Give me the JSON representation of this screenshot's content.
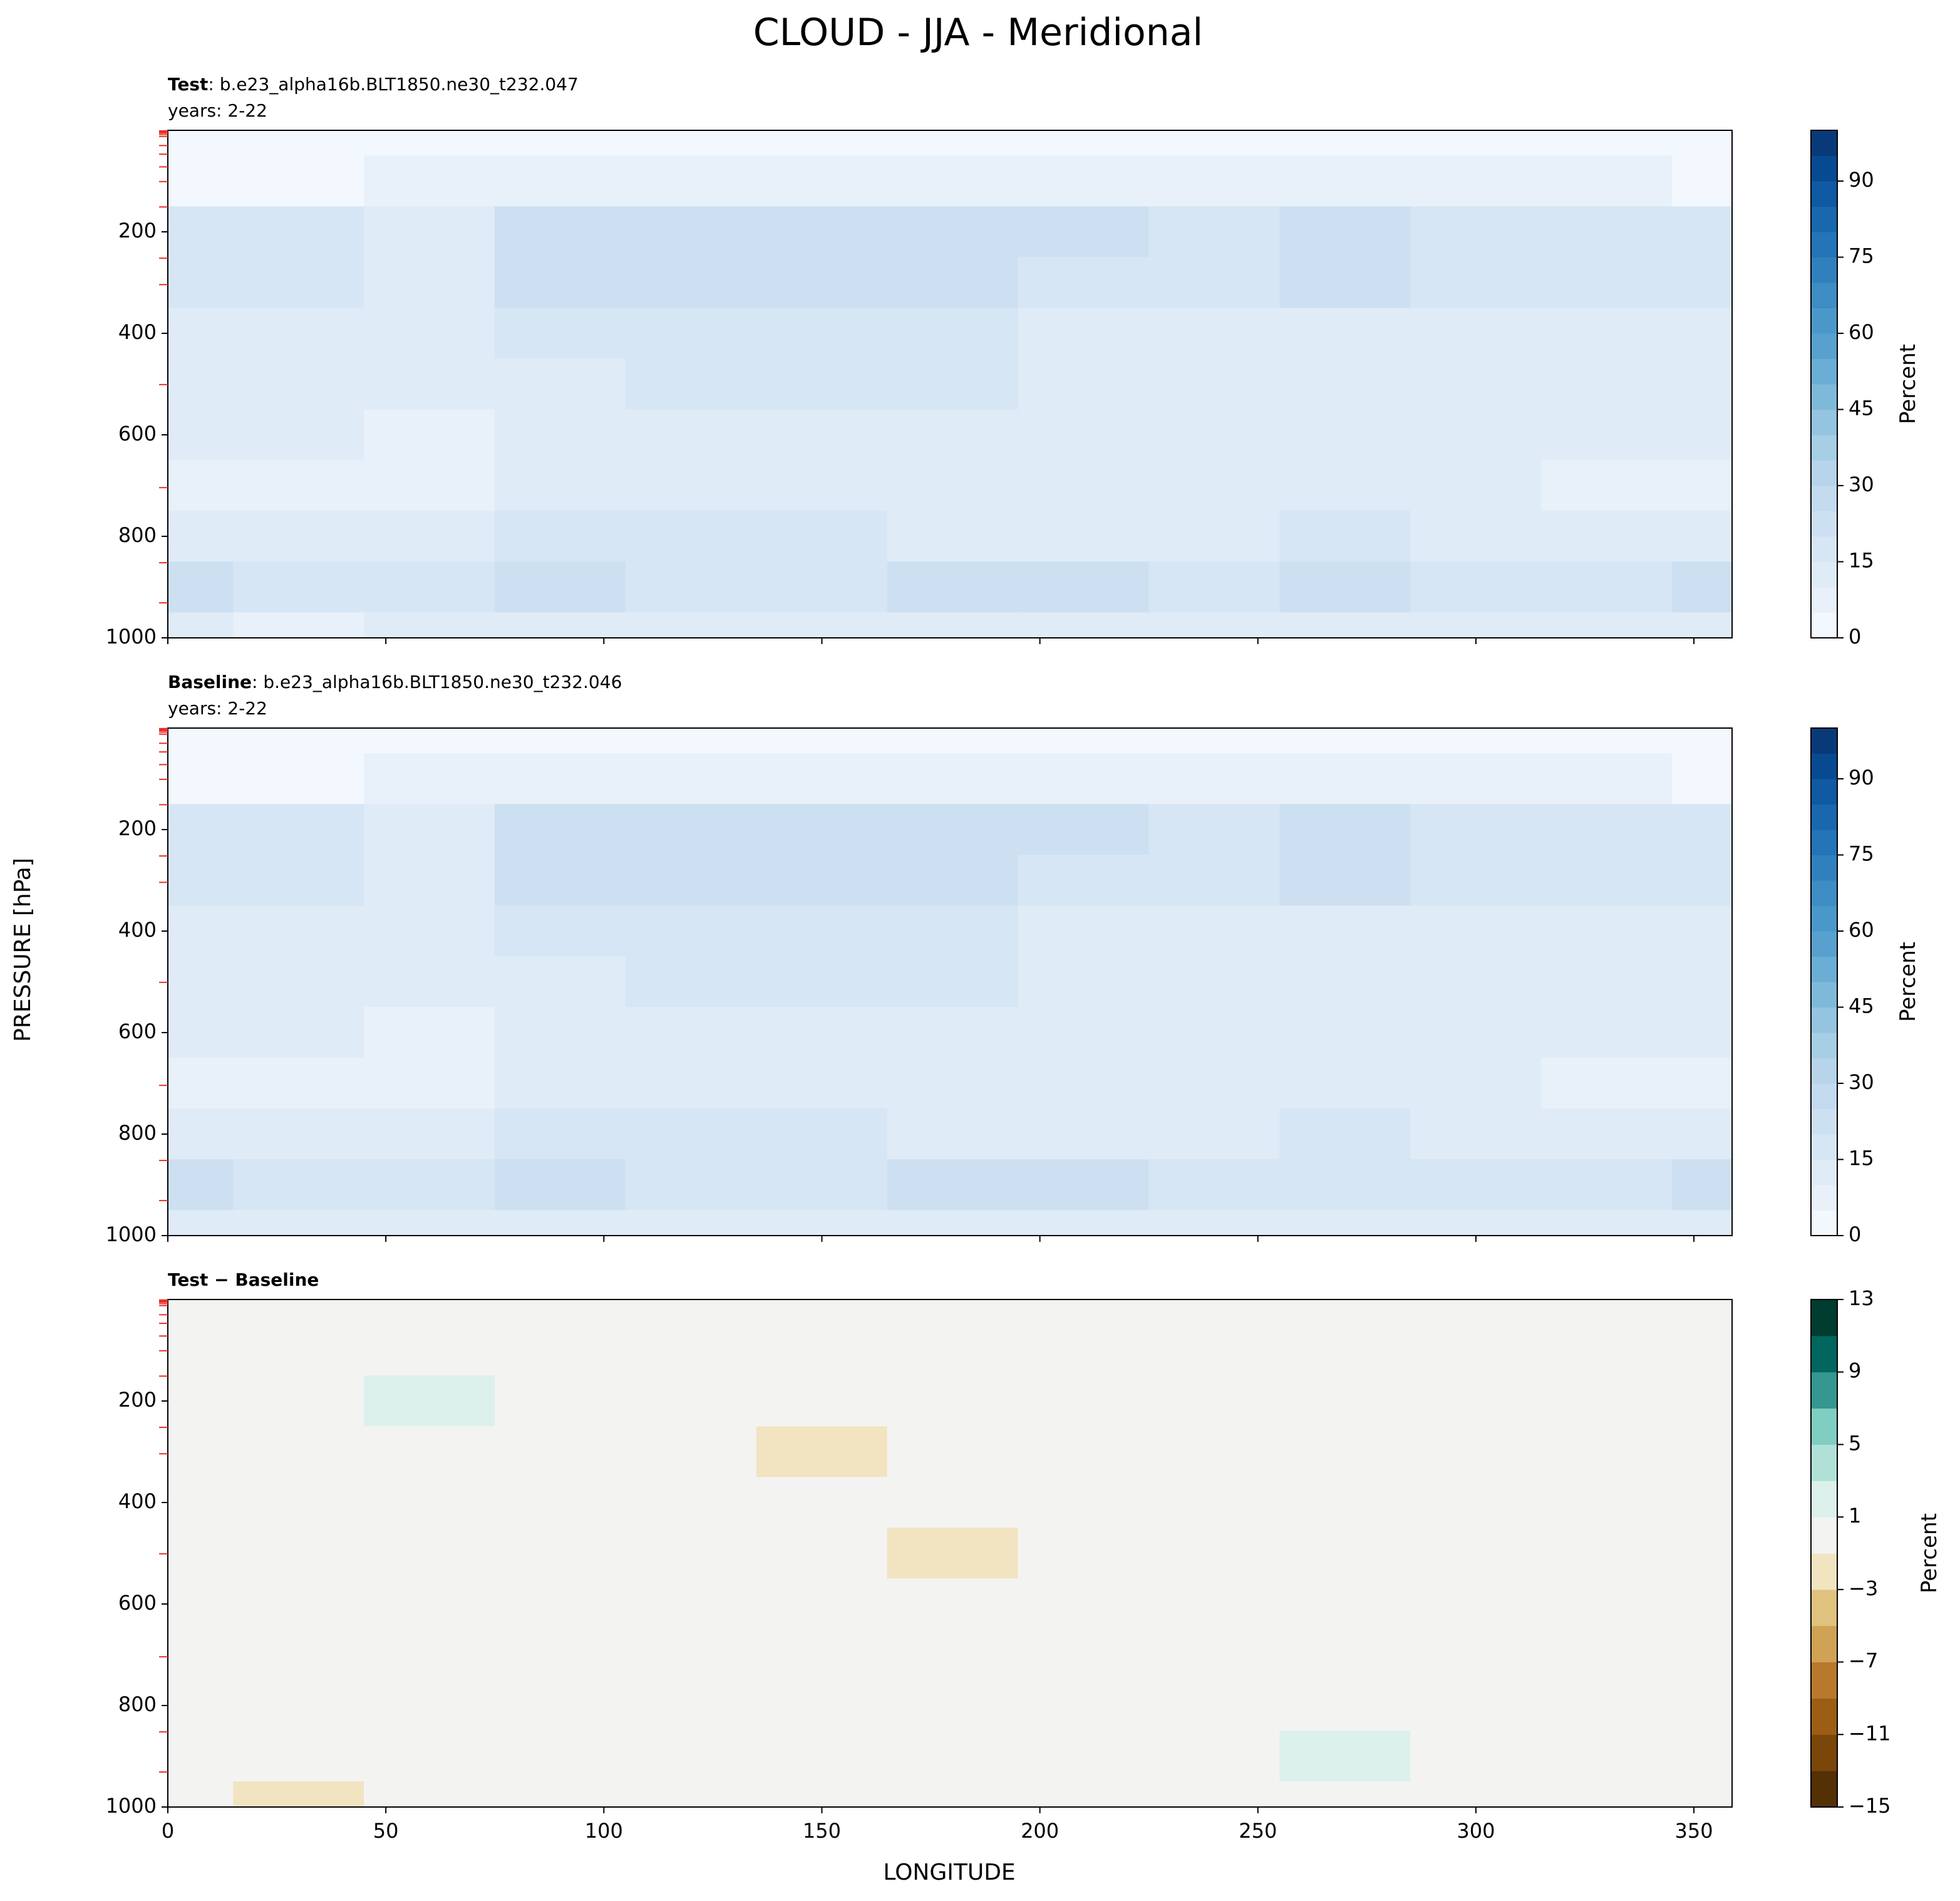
{
  "figure": {
    "title": "CLOUD - JJA - Meridional",
    "xlabel": "LONGITUDE",
    "ylabel": "PRESSURE [hPa]",
    "model_levels": {
      "color": "#e8302a",
      "values": [
        1,
        3,
        5,
        8,
        12,
        30,
        47,
        72,
        101,
        151,
        252,
        304,
        501,
        704,
        852,
        931
      ]
    }
  },
  "chart_data": [
    {
      "type": "contour",
      "title_bold": "Test",
      "title": ": b.e23_alpha16b.BLT1850.ne30_t232.047",
      "subtitle": "years: 2-22",
      "xlim": [
        0,
        358.75
      ],
      "xticks": [
        0,
        50,
        100,
        150,
        200,
        250,
        300,
        350
      ],
      "show_xtick_labels": false,
      "ylim": [
        1000,
        0
      ],
      "yticks": [
        200,
        400,
        600,
        800,
        1000
      ],
      "colorbar_label": "Percent",
      "levels": [
        0,
        5,
        10,
        15,
        20,
        25,
        30,
        35,
        40,
        45,
        50,
        55,
        60,
        65,
        70,
        75,
        80,
        85,
        90,
        95,
        100
      ],
      "colors": [
        "#f3f8fe",
        "#e8f1fa",
        "#dfebf7",
        "#d6e6f4",
        "#cde0f1",
        "#c4daee",
        "#b7d4ea",
        "#a6cee4",
        "#94c4df",
        "#7fb9da",
        "#6aaed6",
        "#58a1cf",
        "#4a98c9",
        "#3d8dc4",
        "#3080bd",
        "#2474b7",
        "#1967ad",
        "#0f5aa3",
        "#084a91",
        "#083a7a"
      ],
      "cbar_ticks": [
        0,
        15,
        30,
        45,
        60,
        75,
        90
      ],
      "x": [
        0,
        30,
        60,
        90,
        120,
        150,
        180,
        210,
        240,
        270,
        300,
        330,
        360
      ],
      "y": [
        0,
        100,
        200,
        300,
        400,
        500,
        600,
        700,
        800,
        900,
        1000
      ],
      "z": [
        [
          2,
          2,
          2,
          2,
          2,
          2,
          2,
          2,
          2,
          2,
          2,
          2,
          2
        ],
        [
          4,
          4,
          7,
          9,
          9,
          9,
          9,
          9,
          8,
          7,
          7,
          5,
          4
        ],
        [
          17,
          17,
          13,
          22,
          24,
          24,
          24,
          22,
          15,
          22,
          17,
          15,
          17
        ],
        [
          18,
          17,
          12,
          20,
          22,
          22,
          21,
          16,
          15,
          20,
          15,
          15,
          18
        ],
        [
          12,
          11,
          12,
          16,
          18,
          18,
          17,
          13,
          12,
          13,
          11,
          11,
          12
        ],
        [
          11,
          11,
          11,
          14,
          17,
          17,
          16,
          12,
          12,
          13,
          11,
          11,
          11
        ],
        [
          10,
          10,
          8,
          12,
          13,
          13,
          13,
          11,
          11,
          12,
          11,
          10,
          10
        ],
        [
          7,
          8,
          6,
          10,
          11,
          11,
          11,
          11,
          11,
          12,
          11,
          7,
          7
        ],
        [
          14,
          13,
          13,
          15,
          15,
          15,
          14,
          14,
          14,
          15,
          14,
          14,
          14
        ],
        [
          20,
          17,
          17,
          21,
          18,
          19,
          20,
          20,
          17,
          20,
          16,
          19,
          20
        ],
        [
          10,
          9,
          10,
          10,
          10,
          10,
          10,
          10,
          10,
          10,
          10,
          10,
          10
        ]
      ]
    },
    {
      "type": "contour",
      "title_bold": "Baseline",
      "title": ": b.e23_alpha16b.BLT1850.ne30_t232.046",
      "subtitle": "years: 2-22",
      "xlim": [
        0,
        358.75
      ],
      "xticks": [
        0,
        50,
        100,
        150,
        200,
        250,
        300,
        350
      ],
      "show_xtick_labels": false,
      "ylim": [
        1000,
        0
      ],
      "yticks": [
        200,
        400,
        600,
        800,
        1000
      ],
      "colorbar_label": "Percent",
      "levels": [
        0,
        5,
        10,
        15,
        20,
        25,
        30,
        35,
        40,
        45,
        50,
        55,
        60,
        65,
        70,
        75,
        80,
        85,
        90,
        95,
        100
      ],
      "colors": [
        "#f3f8fe",
        "#e8f1fa",
        "#dfebf7",
        "#d6e6f4",
        "#cde0f1",
        "#c4daee",
        "#b7d4ea",
        "#a6cee4",
        "#94c4df",
        "#7fb9da",
        "#6aaed6",
        "#58a1cf",
        "#4a98c9",
        "#3d8dc4",
        "#3080bd",
        "#2474b7",
        "#1967ad",
        "#0f5aa3",
        "#084a91",
        "#083a7a"
      ],
      "cbar_ticks": [
        0,
        15,
        30,
        45,
        60,
        75,
        90
      ],
      "x": [
        0,
        30,
        60,
        90,
        120,
        150,
        180,
        210,
        240,
        270,
        300,
        330,
        360
      ],
      "y": [
        0,
        100,
        200,
        300,
        400,
        500,
        600,
        700,
        800,
        900,
        1000
      ],
      "z": [
        [
          2,
          2,
          2,
          2,
          2,
          2,
          2,
          2,
          2,
          2,
          2,
          2,
          2
        ],
        [
          4,
          4,
          7,
          9,
          9,
          9,
          9,
          9,
          8,
          7,
          7,
          5,
          4
        ],
        [
          17,
          17,
          11.8,
          22,
          24,
          24,
          24,
          22,
          15,
          22,
          17,
          15,
          17
        ],
        [
          18,
          17,
          12,
          20,
          22,
          23.2,
          21,
          16,
          15,
          20,
          15,
          15,
          18
        ],
        [
          12,
          11,
          12,
          16,
          18,
          18,
          17,
          13,
          12,
          13,
          11,
          11,
          12
        ],
        [
          11,
          11,
          11,
          14,
          17,
          17,
          17.3,
          12,
          12,
          13,
          11,
          11,
          11
        ],
        [
          10,
          10,
          8,
          12,
          13,
          13,
          13,
          11,
          11,
          12,
          11,
          10,
          10
        ],
        [
          7,
          8,
          6,
          10,
          11,
          11,
          11,
          11,
          11,
          12,
          11,
          7,
          7
        ],
        [
          14,
          13,
          13,
          15,
          15,
          15,
          14,
          14,
          14,
          15,
          14,
          14,
          14
        ],
        [
          20,
          17,
          17,
          21,
          18,
          19,
          20,
          20,
          17,
          18.8,
          16,
          19,
          20
        ],
        [
          10,
          10.5,
          10,
          10,
          10,
          10,
          10,
          10,
          10,
          10,
          10,
          10,
          10
        ]
      ]
    },
    {
      "type": "contour",
      "title_bold": "Test − Baseline",
      "xlim": [
        0,
        358.75
      ],
      "xticks": [
        0,
        50,
        100,
        150,
        200,
        250,
        300,
        350
      ],
      "show_xtick_labels": true,
      "ylim": [
        1000,
        0
      ],
      "yticks": [
        200,
        400,
        600,
        800,
        1000
      ],
      "colorbar_label": "Percent",
      "levels": [
        -15,
        -13,
        -11,
        -9,
        -7,
        -5,
        -3,
        -1,
        1,
        3,
        5,
        7,
        9,
        11,
        13
      ],
      "colors": [
        "#543005",
        "#7a4609",
        "#9c5e14",
        "#b8792c",
        "#cfa255",
        "#dfc27d",
        "#f2e3c1",
        "#f3f4f2",
        "#dcf0ec",
        "#b0e0d6",
        "#80cdc1",
        "#35978f",
        "#01665e",
        "#003c30"
      ],
      "cbar_ticks": [
        {
          "value": -15,
          "label": "−15"
        },
        {
          "value": -11,
          "label": "−11"
        },
        {
          "value": -7,
          "label": "−7"
        },
        {
          "value": -3,
          "label": "−3"
        },
        1,
        5,
        9,
        13
      ],
      "x": [
        0,
        30,
        60,
        90,
        120,
        150,
        180,
        210,
        240,
        270,
        300,
        330,
        360
      ],
      "y": [
        0,
        100,
        200,
        300,
        400,
        500,
        600,
        700,
        800,
        900,
        1000
      ],
      "z": [
        [
          0,
          0,
          0,
          0,
          0,
          0,
          0,
          0,
          0,
          0,
          0,
          0,
          0
        ],
        [
          0,
          0,
          0,
          0,
          0,
          0,
          0,
          0,
          0,
          0,
          0,
          0,
          0
        ],
        [
          0,
          0,
          1.2,
          0,
          0,
          0,
          0,
          0,
          0,
          0,
          0,
          0,
          0
        ],
        [
          0,
          0,
          0,
          0,
          0,
          -1.2,
          0,
          0,
          0,
          0,
          0,
          0,
          0
        ],
        [
          0,
          0,
          0,
          0,
          0,
          0,
          0,
          0,
          0,
          0,
          0,
          0,
          0
        ],
        [
          0,
          0,
          0,
          0,
          0,
          0,
          -1.3,
          0,
          0,
          0,
          0,
          0,
          0
        ],
        [
          0,
          0,
          0,
          0,
          0,
          0,
          0,
          0,
          0,
          0,
          0,
          0,
          0
        ],
        [
          0,
          0,
          0,
          0,
          0,
          0,
          0,
          0,
          0,
          0,
          0,
          0,
          0
        ],
        [
          0,
          0,
          0,
          0,
          0,
          0,
          0,
          0,
          0,
          0,
          0,
          0,
          0
        ],
        [
          0,
          0,
          0,
          0,
          0,
          0,
          0,
          0,
          0,
          1.2,
          0,
          0,
          0
        ],
        [
          0,
          -1.5,
          0,
          0,
          0,
          0,
          0,
          0,
          0,
          0,
          0,
          0,
          0
        ]
      ]
    }
  ]
}
